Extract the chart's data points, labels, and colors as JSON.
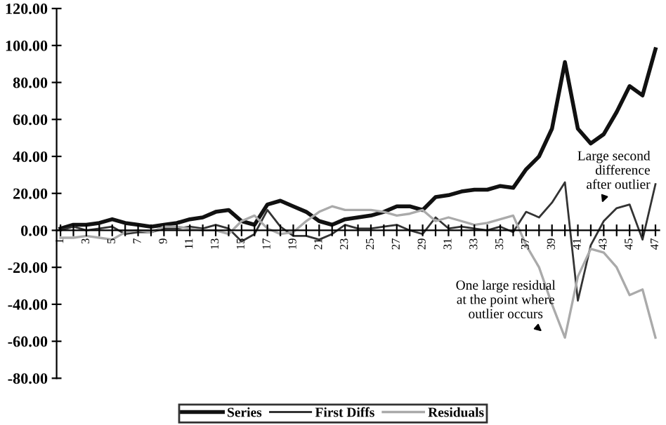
{
  "chart_data": {
    "type": "line",
    "categories": [
      "1",
      null,
      "3",
      null,
      "5",
      null,
      "7",
      null,
      "9",
      null,
      "11",
      null,
      "13",
      null,
      "15",
      null,
      "17",
      null,
      "19",
      null,
      "21",
      null,
      "23",
      null,
      "25",
      null,
      "27",
      null,
      "29",
      null,
      "31",
      null,
      "33",
      null,
      "35",
      null,
      "37",
      null,
      "39",
      null,
      "41",
      null,
      "43",
      null,
      "45",
      null,
      "47"
    ],
    "series": [
      {
        "name": "Series",
        "color": "#111111",
        "values": [
          1,
          3,
          3,
          4,
          6,
          4,
          3,
          2,
          3,
          4,
          6,
          7,
          10,
          11,
          5,
          3,
          14,
          16,
          13,
          10,
          5,
          3,
          6,
          7,
          8,
          10,
          13,
          13,
          11,
          18,
          19,
          21,
          22,
          22,
          24,
          23,
          33,
          40,
          55,
          91,
          55,
          47,
          52,
          64,
          78,
          73,
          98
        ]
      },
      {
        "name": "First Diffs",
        "color": "#333333",
        "values": [
          0,
          2,
          0,
          1,
          2,
          -2,
          -1,
          -1,
          1,
          1,
          2,
          1,
          3,
          1,
          -6,
          -2,
          11,
          2,
          -3,
          -3,
          -5,
          -2,
          3,
          1,
          1,
          2,
          3,
          0,
          -2,
          7,
          1,
          2,
          1,
          0,
          2,
          -1,
          10,
          7,
          15,
          26,
          -38,
          -8,
          5,
          12,
          14,
          -5,
          25
        ]
      },
      {
        "name": "Residuals",
        "color": "#aaaaaa",
        "values": [
          -4,
          -4,
          -3,
          -4,
          -5,
          -1,
          0,
          -1,
          2,
          2,
          1,
          0,
          0,
          -2,
          5,
          8,
          1,
          -2,
          -1,
          5,
          10,
          13,
          11,
          11,
          11,
          10,
          8,
          9,
          11,
          5,
          7,
          5,
          3,
          4,
          6,
          8,
          -8,
          -20,
          -40,
          -58,
          -25,
          -10,
          -12,
          -20,
          -35,
          -32,
          -58
        ]
      }
    ],
    "ylim": [
      -80,
      120
    ],
    "yticks": [
      {
        "value": -80,
        "label": "-80.00"
      },
      {
        "value": -60,
        "label": "-60.00"
      },
      {
        "value": -40,
        "label": "-40.00"
      },
      {
        "value": -20,
        "label": "-20.00"
      },
      {
        "value": 0,
        "label": "0.00"
      },
      {
        "value": 20,
        "label": "20.00"
      },
      {
        "value": 40,
        "label": "40.00"
      },
      {
        "value": 60,
        "label": "60.00"
      },
      {
        "value": 80,
        "label": "80.00"
      },
      {
        "value": 100,
        "label": "100.00"
      },
      {
        "value": 120,
        "label": "120.00"
      }
    ],
    "annotations": [
      "Large second\ndifference\nafter outlier",
      "One large residual\nat the point where\noutlier occurs"
    ],
    "legend": "bottom",
    "grid": false,
    "marker": "none",
    "line_style": "solid"
  }
}
